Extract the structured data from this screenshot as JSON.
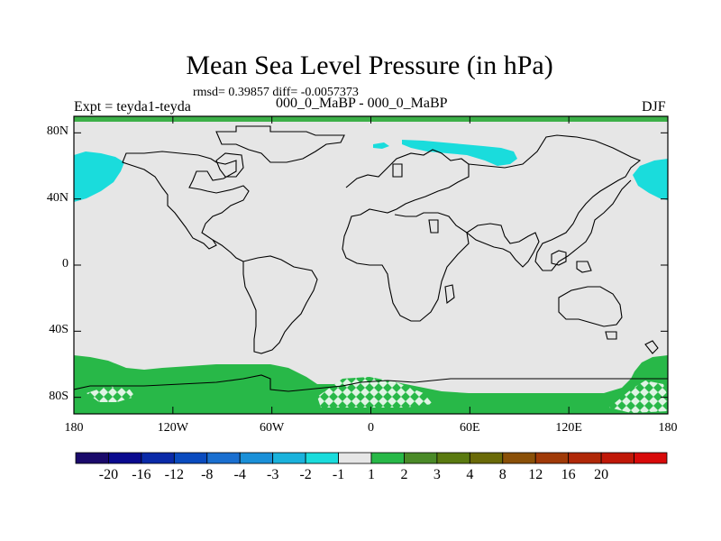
{
  "title": "Mean Sea Level Pressure (in hPa)",
  "stats": "rmsd= 0.39857 diff= -0.0057373",
  "left_label": "Expt = teyda1-teyda",
  "subtitle": "000_0_MaBP - 000_0_MaBP",
  "right_label": "DJF",
  "lat_ticks": [
    {
      "lat": 80,
      "label": "80N"
    },
    {
      "lat": 40,
      "label": "40N"
    },
    {
      "lat": 0,
      "label": "0"
    },
    {
      "lat": -40,
      "label": "40S"
    },
    {
      "lat": -80,
      "label": "80S"
    }
  ],
  "lon_ticks": [
    {
      "lon": -180,
      "label": "180"
    },
    {
      "lon": -120,
      "label": "120W"
    },
    {
      "lon": -60,
      "label": "60W"
    },
    {
      "lon": 0,
      "label": "0"
    },
    {
      "lon": 60,
      "label": "60E"
    },
    {
      "lon": 120,
      "label": "120E"
    },
    {
      "lon": 180,
      "label": "180"
    }
  ],
  "colorbar": {
    "colors": [
      "#1a0a6b",
      "#0a0a8f",
      "#0a2aa8",
      "#0a4bbf",
      "#1a6fd0",
      "#1a90d8",
      "#1ab2dc",
      "#1adcdc",
      "#e6e6e6",
      "#28b848",
      "#4a8a28",
      "#5a7a10",
      "#6a6a08",
      "#8a5008",
      "#a03a08",
      "#b02808",
      "#c01808",
      "#d80a0a"
    ],
    "labels": [
      "-20",
      "-16",
      "-12",
      "-8",
      "-4",
      "-3",
      "-2",
      "-1",
      "1",
      "2",
      "3",
      "4",
      "8",
      "12",
      "16",
      "20"
    ]
  },
  "colors": {
    "background": "#e6e6e6",
    "positive": "#28b848",
    "negative": "#1adcdc",
    "coast": "#000000",
    "top_band": "#3cb048"
  }
}
